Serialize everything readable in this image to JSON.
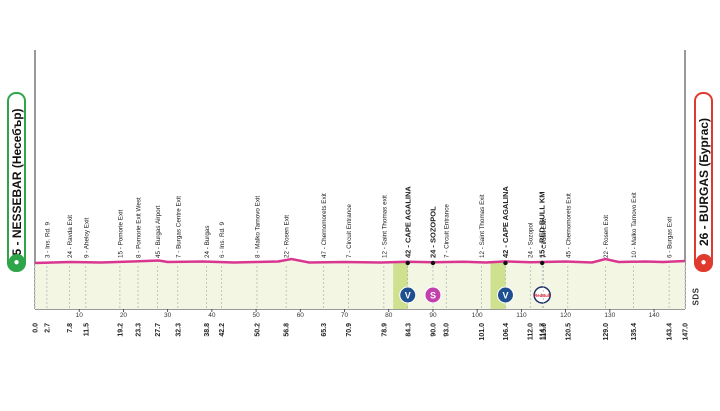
{
  "start": {
    "label": "5 - NESSEBAR (Несебър)",
    "icon": "bicycle-icon"
  },
  "finish": {
    "label": "26 - BURGAS (Бургас)",
    "icon": "bicycle-icon"
  },
  "brand_mark": "SDS",
  "colors": {
    "profile_line": "#d9378f",
    "profile_fill": "#f3f6e3",
    "start": "#2fa54a",
    "finish": "#e03a2f",
    "kom": "#1d4f91",
    "sprint": "#c43fae"
  },
  "scale_ticks": [
    "10",
    "20",
    "30",
    "40",
    "50",
    "60",
    "70",
    "80",
    "90",
    "100",
    "110",
    "120",
    "130",
    "140"
  ],
  "waypoints": [
    {
      "km": "0.0",
      "name": ""
    },
    {
      "km": "2.7",
      "name": "3 - Ins. Rd. 9"
    },
    {
      "km": "7.8",
      "name": "24 - Ravda Exit"
    },
    {
      "km": "11.5",
      "name": "9 - Aheloy Exit"
    },
    {
      "km": "19.2",
      "name": "15 - Pomorie Exit"
    },
    {
      "km": "23.3",
      "name": "8 - Pomorie Exit West"
    },
    {
      "km": "27.7",
      "name": "45 - Burgas Airport"
    },
    {
      "km": "32.3",
      "name": "7 - Burgas Centre Exit"
    },
    {
      "km": "38.8",
      "name": "24 - Burgas"
    },
    {
      "km": "42.2",
      "name": "6 - Ins. Rd. 9"
    },
    {
      "km": "50.2",
      "name": "8 - Malko Tarnovo Exit"
    },
    {
      "km": "56.8",
      "name": "22 - Rosen Exit"
    },
    {
      "km": "65.3",
      "name": "47 - Chernomorets Exit"
    },
    {
      "km": "70.9",
      "name": "7 - Circuit Entrance"
    },
    {
      "km": "78.9",
      "name": "12 - Saint Thomas exit"
    },
    {
      "km": "84.3",
      "name": "42 - CAPE AGALINA",
      "bold": true,
      "marker": "kom"
    },
    {
      "km": "90.0",
      "name": "24 - SOZOPOL",
      "bold": true,
      "marker": "sprint"
    },
    {
      "km": "93.0",
      "name": "7 - Circuit Entrance"
    },
    {
      "km": "101.0",
      "name": "12 - Saint Thomas Exit"
    },
    {
      "km": "106.4",
      "name": "42 - CAPE AGALINA",
      "bold": true,
      "marker": "kom"
    },
    {
      "km": "112.0",
      "name": "24 - Sozopol"
    },
    {
      "km": "114.7",
      "name": "15 - RED BULL KM",
      "bold": true,
      "marker": "redbull"
    },
    {
      "km": "115.0",
      "name": "7 - Circuit Exit"
    },
    {
      "km": "120.5",
      "name": "45 - Chernomorets Exit"
    },
    {
      "km": "129.0",
      "name": "22 - Rosen Exit"
    },
    {
      "km": "135.4",
      "name": "10 - Malko Tarnovo Exit"
    },
    {
      "km": "143.4",
      "name": "6 - Burgas Exit"
    },
    {
      "km": "147.0",
      "name": ""
    }
  ],
  "marker_icons": {
    "kom": "kom-icon",
    "sprint": "sprint-icon",
    "redbull": "red-bull-km-icon"
  },
  "marker_letters": {
    "kom": "V",
    "sprint": "S",
    "redbull": "RedBull"
  }
}
